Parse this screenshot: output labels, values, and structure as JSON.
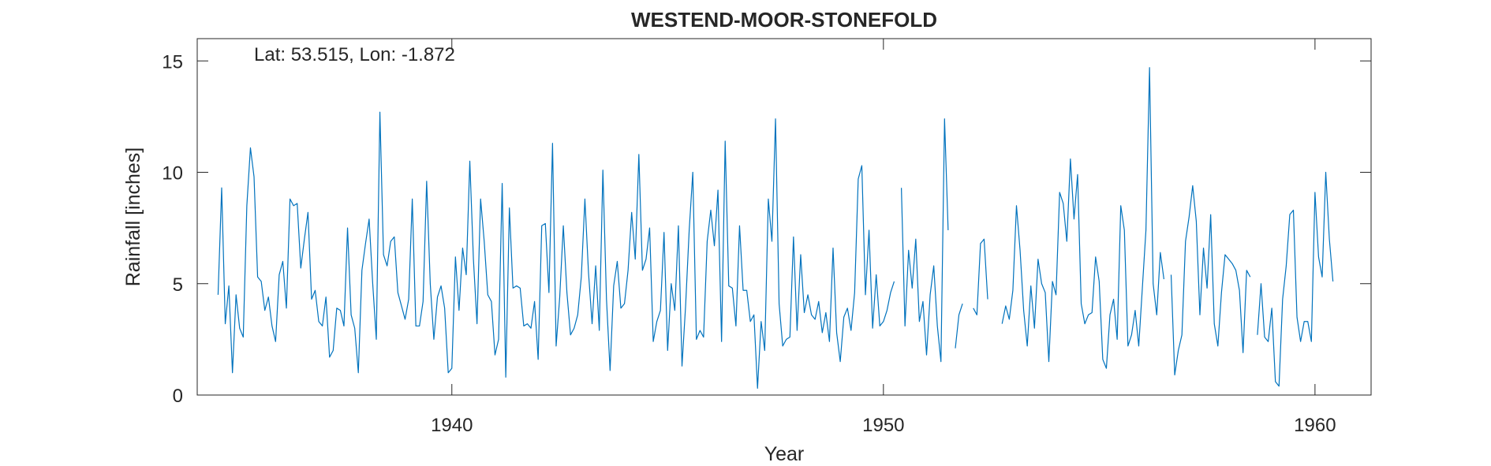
{
  "chart_data": {
    "type": "line",
    "title": "WESTEND-MOOR-STONEFOLD",
    "annotation": "Lat: 53.515, Lon: -1.872",
    "xlabel": "Year",
    "ylabel": "Rainfall [inches]",
    "xlim": [
      1934.1,
      1961.3
    ],
    "ylim": [
      0,
      16
    ],
    "xticks": [
      1940,
      1950,
      1960
    ],
    "yticks": [
      0,
      5,
      10,
      15
    ],
    "grid": false,
    "line_color": "#0072BD",
    "axis_color": "#262626",
    "series": [
      {
        "start_year": 1934.583,
        "step_months": 1,
        "values": [
          4.5,
          9.3,
          3.2,
          4.9,
          1.0,
          4.5,
          3.0,
          2.6,
          8.5,
          11.1,
          9.8,
          5.3,
          5.1,
          3.8,
          4.4,
          3.1,
          2.4,
          5.4,
          6.0,
          3.9,
          8.8,
          8.5,
          8.6,
          5.7,
          7.0,
          8.2,
          4.3,
          4.7,
          3.3,
          3.1,
          4.4,
          1.7,
          2.0,
          3.9,
          3.8,
          3.1,
          7.5,
          3.6,
          3.0,
          1.0,
          5.6,
          6.8,
          7.9,
          5.0,
          2.5,
          12.7,
          6.3,
          5.8,
          6.9,
          7.1,
          4.6,
          4.0,
          3.4,
          4.3,
          8.8,
          3.1,
          3.1,
          4.2,
          9.6,
          5.0,
          2.5,
          4.4,
          4.9,
          3.9,
          1.0,
          1.2,
          6.2,
          3.8,
          6.6,
          5.4,
          10.5,
          6.1,
          3.2,
          8.8,
          6.9,
          4.5,
          4.2,
          1.8,
          2.5,
          9.5,
          0.8,
          8.4,
          4.8,
          4.9,
          4.8,
          3.1,
          3.2,
          3.0,
          4.2,
          1.6,
          7.6,
          7.7,
          4.6,
          11.3,
          2.2,
          4.4,
          7.6,
          4.6,
          2.7,
          3.0,
          3.6,
          5.3,
          8.8,
          5.5,
          3.2,
          5.8,
          2.9,
          10.1,
          4.3,
          1.1,
          4.9,
          6.0,
          3.9,
          4.1,
          5.6,
          8.2,
          6.1,
          10.8,
          5.6,
          6.1,
          7.5,
          2.4,
          3.3,
          3.8,
          7.3,
          2.0,
          5.0,
          3.8,
          7.6,
          1.3,
          4.0,
          7.4,
          10.0,
          2.5,
          2.9,
          2.6,
          6.9,
          8.3,
          6.7,
          9.2,
          2.4,
          11.4,
          4.9,
          4.8,
          3.1,
          7.6,
          4.7,
          4.7,
          3.3,
          3.6,
          0.3,
          3.3,
          2.0,
          8.8,
          6.9,
          12.4,
          4.1,
          2.2,
          2.5,
          2.6,
          7.1,
          2.9,
          6.3,
          3.7,
          4.5,
          3.6,
          3.4,
          4.2,
          2.8,
          3.7,
          2.4,
          6.6,
          2.8,
          1.5,
          3.5,
          3.9,
          2.9,
          4.6,
          9.7,
          10.3,
          4.5,
          7.4,
          3.0,
          5.4,
          3.1,
          3.3,
          3.8,
          4.6,
          5.1,
          null,
          9.3,
          3.1,
          6.5,
          4.8,
          7.0,
          3.3,
          4.2,
          1.8,
          4.5,
          5.8,
          3.1,
          1.5,
          12.4,
          7.4,
          null,
          2.1,
          3.6,
          4.1,
          null,
          null,
          3.9,
          3.6,
          6.8,
          7.0,
          4.3,
          null,
          null,
          null,
          3.2,
          4.0,
          3.4,
          4.7,
          8.5,
          6.5,
          3.8,
          2.2,
          4.9,
          3.0,
          6.1,
          5.0,
          4.6,
          1.5,
          5.1,
          4.5,
          9.1,
          8.6,
          6.9,
          10.6,
          7.9,
          9.9,
          4.1,
          3.2,
          3.6,
          3.7,
          6.2,
          5.1,
          1.6,
          1.2,
          3.6,
          4.3,
          2.5,
          8.5,
          7.4,
          2.2,
          2.7,
          3.8,
          2.2,
          4.8,
          7.4,
          14.7,
          5.0,
          3.6,
          6.4,
          5.2,
          null,
          5.4,
          0.9,
          2.0,
          2.7,
          6.9,
          8.0,
          9.4,
          7.8,
          3.6,
          6.6,
          4.8,
          8.1,
          3.2,
          2.2,
          4.6,
          6.3,
          6.1,
          5.9,
          5.6,
          4.7,
          1.9,
          5.6,
          5.3,
          null,
          2.7,
          5.0,
          2.6,
          2.4,
          3.9,
          0.6,
          0.4,
          4.3,
          5.8,
          8.1,
          8.3,
          3.5,
          2.4,
          3.3,
          3.3,
          2.4,
          9.1,
          6.2,
          5.3,
          10.0,
          7.0,
          5.1
        ]
      }
    ]
  }
}
